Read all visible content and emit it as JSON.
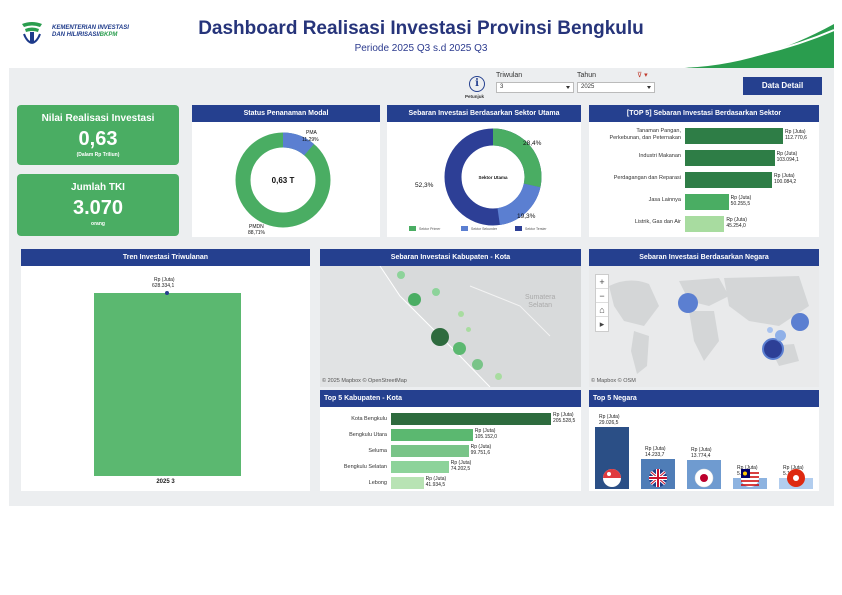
{
  "header": {
    "logo_line1": "KEMENTERIAN INVESTASI",
    "logo_line2": "DAN HILIRISASI/",
    "logo_line2_accent": "BKPM",
    "title": "Dashboard Realisasi Investasi Provinsi Bengkulu",
    "subtitle": "Periode 2025 Q3 s.d 2025 Q3"
  },
  "filters": {
    "info_label": "Petunjuk",
    "triwulan_label": "Triwulan",
    "triwulan_value": "3",
    "tahun_label": "Tahun",
    "tahun_value": "2025",
    "detail_button": "Data Detail"
  },
  "kpi": {
    "investasi_label": "Nilai Realisasi Investasi",
    "investasi_value": "0,63",
    "investasi_unit": "(Dalam Rp Triliun)",
    "tki_label": "Jumlah TKI",
    "tki_value": "3.070",
    "tki_unit": "orang"
  },
  "status_modal": {
    "title": "Status Penanaman Modal",
    "center_label": "0,63 T",
    "pma_label": "PMA",
    "pma_pct": "11,29%",
    "pmdn_label": "PMDN",
    "pmdn_pct": "88,71%"
  },
  "sektor_utama": {
    "title": "Sebaran Investasi Berdasarkan Sektor Utama",
    "center_label": "Sektor Utama",
    "pct_primer": "28,4%",
    "pct_sekunder": "19,3%",
    "pct_tersier": "52,3%",
    "legend_primer": "Sektor Primer",
    "legend_sekunder": "Sektor Sekunder",
    "legend_tersier": "Sektor Tersier"
  },
  "top5_sektor": {
    "title": "[TOP 5] Sebaran Investasi Berdasarkan Sektor",
    "unit": "Rp (Juta)",
    "items": [
      {
        "label1": "Tanaman Pangan,",
        "label2": "Perkebunan, dan Peternakan",
        "value": "112.770,6"
      },
      {
        "label1": "Industri Makanan",
        "label2": "",
        "value": "103.094,1"
      },
      {
        "label1": "Perdagangan dan Reparasi",
        "label2": "",
        "value": "100.084,2"
      },
      {
        "label1": "Jasa Lainnya",
        "label2": "",
        "value": "50.255,5"
      },
      {
        "label1": "Listrik, Gas dan Air",
        "label2": "",
        "value": "45.254,0"
      }
    ]
  },
  "tren": {
    "title": "Tren Investasi Triwulanan",
    "unit": "Rp (Juta)",
    "value": "628.334,1",
    "category": "2025 3"
  },
  "kab_kota_map": {
    "title": "Sebaran Investasi Kabupaten - Kota",
    "label_line1": "Sumatera",
    "label_line2": "Selatan",
    "credit": "© 2025 Mapbox  © OpenStreetMap"
  },
  "negara_map": {
    "title": "Sebaran Investasi Berdasarkan Negara",
    "credit": "© Mapbox  © OSM",
    "zoom_in": "+",
    "zoom_out": "−",
    "home": "⌂",
    "pan": "▸"
  },
  "top5_kab": {
    "title": "Top 5 Kabupaten - Kota",
    "unit": "Rp (Juta)",
    "items": [
      {
        "label": "Kota Bengkulu",
        "value": "205.528,5"
      },
      {
        "label": "Bengkulu Utara",
        "value": "105.152,0"
      },
      {
        "label": "Seluma",
        "value": "99.751,6"
      },
      {
        "label": "Bengkulu Selatan",
        "value": "74.202,5"
      },
      {
        "label": "Lebong",
        "value": "41.934,5"
      }
    ]
  },
  "top5_negara": {
    "title": "Top 5 Negara",
    "unit": "Rp (Juta)",
    "items": [
      {
        "value": "29.026,5",
        "flag": "singapore-flag"
      },
      {
        "value": "14.233,7",
        "flag": "united-kingdom-flag"
      },
      {
        "value": "13.774,4",
        "flag": "japan-flag"
      },
      {
        "value": "5.235,2",
        "flag": "malaysia-flag"
      },
      {
        "value": "5.162,3",
        "flag": "hong-kong-flag"
      }
    ]
  },
  "colors": {
    "navy": "#25408f",
    "green": "#4aad63",
    "dark_green": "#2e7d46",
    "light_green": "#a8dca0",
    "blue_dark": "#2d3f96",
    "blue_light": "#5b7fd1"
  }
}
